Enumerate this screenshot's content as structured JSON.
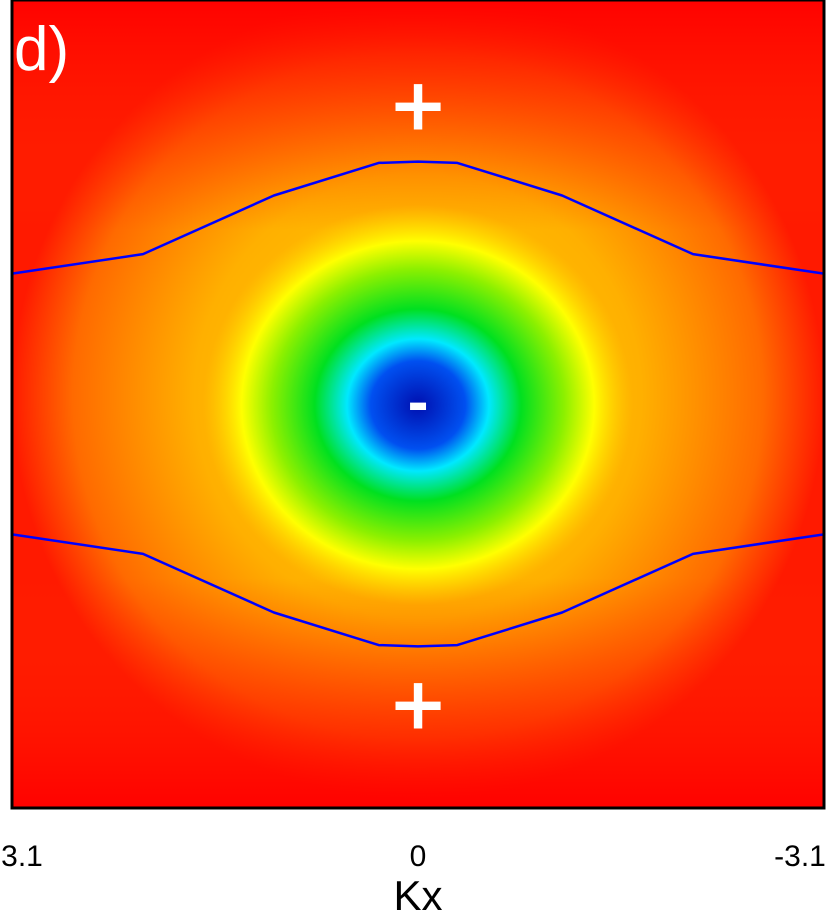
{
  "chart_data": {
    "type": "heatmap",
    "title": "",
    "panel_label": "d)",
    "xlabel": "Kx",
    "ylabel": "",
    "x_ticks": [
      {
        "value": 3.1,
        "label": "3.1"
      },
      {
        "value": 0,
        "label": "0"
      },
      {
        "value": -3.1,
        "label": "-3.1"
      }
    ],
    "xlim": [
      3.1,
      -3.1
    ],
    "colormap": [
      "#0000c8",
      "#00e8ff",
      "#00e600",
      "#ffff00",
      "#ffa500",
      "#ff0000"
    ],
    "grid": false,
    "legend": "none",
    "minimum": {
      "x": 0,
      "y": 0,
      "sign": "-"
    },
    "maxima": [
      {
        "x": 0,
        "y": 2.3,
        "sign": "+"
      },
      {
        "x": 0,
        "y": -2.3,
        "sign": "+"
      }
    ],
    "contours": [
      {
        "name": "upper-zero-contour",
        "color": "#0000ff",
        "points": [
          [
            -3.1,
            1.0
          ],
          [
            -2.1,
            1.15
          ],
          [
            -1.1,
            1.6
          ],
          [
            -0.3,
            1.85
          ],
          [
            0,
            1.86
          ],
          [
            0.3,
            1.85
          ],
          [
            1.1,
            1.6
          ],
          [
            2.1,
            1.15
          ],
          [
            3.1,
            1.0
          ]
        ]
      },
      {
        "name": "lower-zero-contour",
        "color": "#0000ff",
        "points": [
          [
            -3.1,
            -1.0
          ],
          [
            -2.1,
            -1.15
          ],
          [
            -1.1,
            -1.6
          ],
          [
            -0.3,
            -1.85
          ],
          [
            0,
            -1.86
          ],
          [
            0.3,
            -1.85
          ],
          [
            1.1,
            -1.6
          ],
          [
            2.1,
            -1.15
          ],
          [
            3.1,
            -1.0
          ]
        ]
      }
    ]
  }
}
